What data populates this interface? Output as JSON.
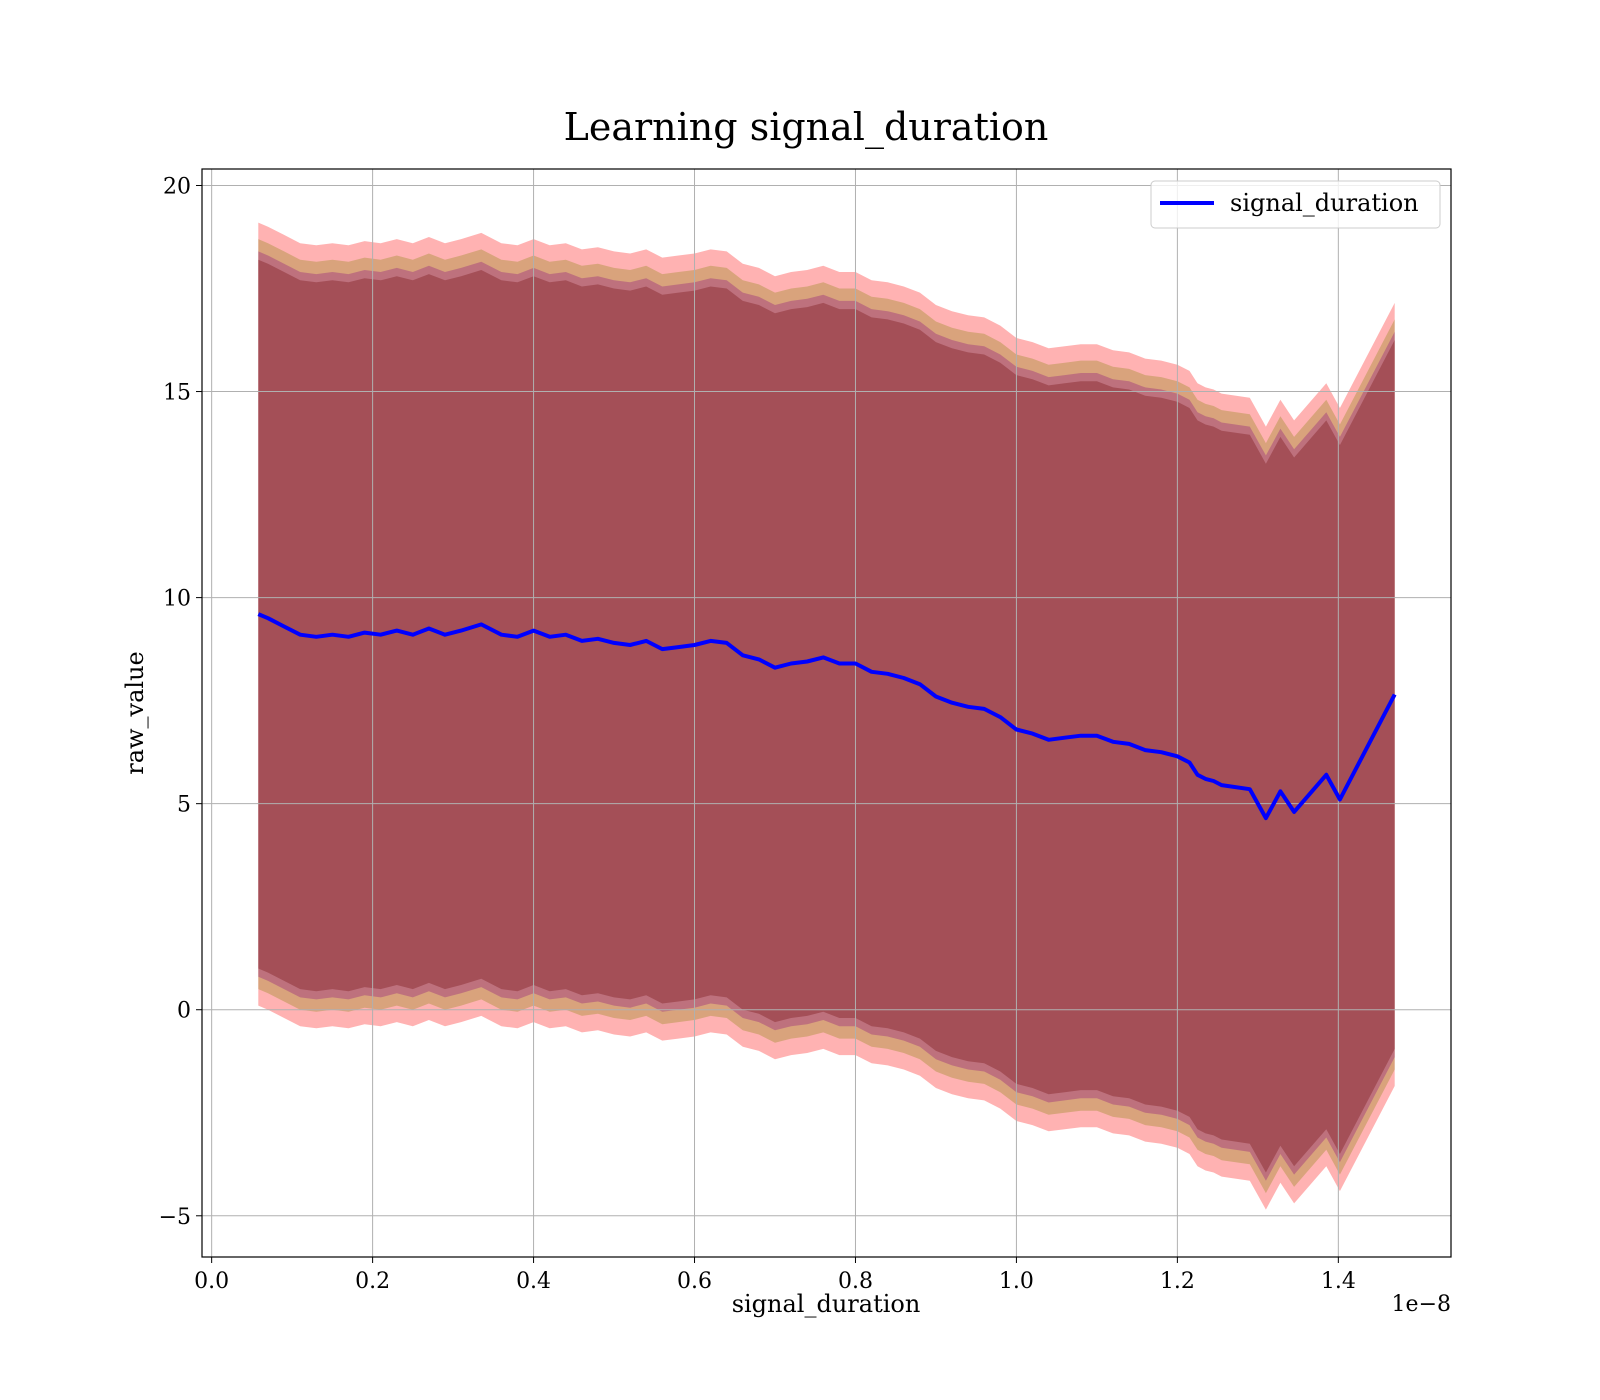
{
  "chart_data": {
    "type": "line",
    "title": "Learning signal_duration",
    "xlabel": "signal_duration",
    "ylabel": "raw_value",
    "x_multiplier_label": "1e−8",
    "xlim": [
      -0.012,
      1.54
    ],
    "ylim": [
      -6,
      20.4
    ],
    "xticks": [
      0.0,
      0.2,
      0.4,
      0.6,
      0.8,
      1.0,
      1.2,
      1.4
    ],
    "xtick_labels": [
      "0.0",
      "0.2",
      "0.4",
      "0.6",
      "0.8",
      "1.0",
      "1.2",
      "1.4"
    ],
    "yticks": [
      -5,
      0,
      5,
      10,
      15,
      20
    ],
    "ytick_labels": [
      "−5",
      "0",
      "5",
      "10",
      "15",
      "20"
    ],
    "grid": true,
    "legend_position": "top-right",
    "series": [
      {
        "name": "signal_duration",
        "color": "#0000ff",
        "x": [
          0.058,
          0.07,
          0.09,
          0.11,
          0.13,
          0.15,
          0.17,
          0.19,
          0.21,
          0.23,
          0.25,
          0.27,
          0.29,
          0.31,
          0.335,
          0.36,
          0.38,
          0.4,
          0.42,
          0.44,
          0.46,
          0.48,
          0.5,
          0.52,
          0.54,
          0.56,
          0.58,
          0.6,
          0.62,
          0.64,
          0.66,
          0.68,
          0.7,
          0.72,
          0.74,
          0.76,
          0.78,
          0.8,
          0.82,
          0.84,
          0.86,
          0.88,
          0.9,
          0.92,
          0.94,
          0.96,
          0.98,
          1.0,
          1.02,
          1.04,
          1.06,
          1.08,
          1.1,
          1.12,
          1.14,
          1.16,
          1.18,
          1.2,
          1.215,
          1.225,
          1.235,
          1.245,
          1.255,
          1.29,
          1.31,
          1.328,
          1.345,
          1.385,
          1.402,
          1.47
        ],
        "y": [
          9.6,
          9.5,
          9.3,
          9.1,
          9.05,
          9.1,
          9.05,
          9.15,
          9.1,
          9.2,
          9.1,
          9.25,
          9.1,
          9.2,
          9.35,
          9.1,
          9.05,
          9.2,
          9.05,
          9.1,
          8.95,
          9.0,
          8.9,
          8.85,
          8.95,
          8.75,
          8.8,
          8.85,
          8.95,
          8.9,
          8.6,
          8.5,
          8.3,
          8.4,
          8.45,
          8.55,
          8.4,
          8.4,
          8.2,
          8.15,
          8.05,
          7.9,
          7.6,
          7.45,
          7.35,
          7.3,
          7.1,
          6.8,
          6.7,
          6.55,
          6.6,
          6.65,
          6.65,
          6.5,
          6.45,
          6.3,
          6.25,
          6.15,
          6.0,
          5.7,
          5.6,
          5.55,
          5.45,
          5.35,
          4.65,
          5.3,
          4.8,
          5.7,
          5.1,
          7.65
        ]
      }
    ],
    "band_offsets": [
      {
        "color": "#ff0000",
        "opacity": 0.3,
        "width": 9.5
      },
      {
        "color": "#808000",
        "opacity": 0.3,
        "width": 9.1
      },
      {
        "color": "#800080",
        "opacity": 0.3,
        "width": 8.8
      },
      {
        "color": "#6b0000",
        "opacity": 0.3,
        "width": 8.6
      }
    ]
  }
}
